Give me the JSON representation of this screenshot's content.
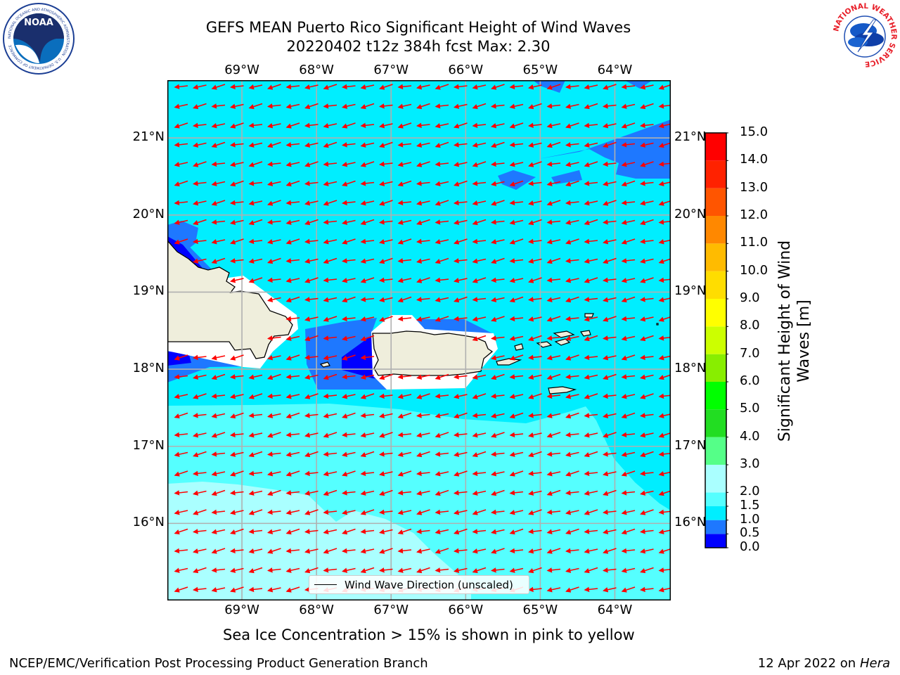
{
  "title": {
    "line1": "GEFS MEAN Puerto Rico Significant Height of Wind Waves",
    "line2": "20220402 t12z 384h fcst   Max: 2.30"
  },
  "logos": {
    "noaa": {
      "center_text": "NOAA",
      "ring_text": "NATIONAL OCEANIC AND ATMOSPHERIC ADMINISTRATION · U.S. DEPARTMENT OF COMMERCE"
    },
    "nws": {
      "ring_text": "NATIONAL WEATHER SERVICE"
    }
  },
  "map": {
    "lon_labels": [
      "69°W",
      "68°W",
      "67°W",
      "66°W",
      "65°W",
      "64°W"
    ],
    "lat_labels": [
      "21°N",
      "20°N",
      "19°N",
      "18°N",
      "17°N",
      "16°N"
    ],
    "lon_extent": [
      -70.0,
      -63.25
    ],
    "lat_extent": [
      15.0,
      21.75
    ],
    "land_color": "#efeedc",
    "arrow_color": "#ff0000",
    "grid_color": "#b0b0b0",
    "wind_wave_direction": "east-to-west"
  },
  "colorbar": {
    "label": "Significant Height of Wind Waves [m]",
    "tick_labels": [
      "0.0",
      "0.5",
      "1.0",
      "1.5",
      "2.0",
      "3.0",
      "4.0",
      "5.0",
      "6.0",
      "7.0",
      "8.0",
      "9.0",
      "10.0",
      "11.0",
      "12.0",
      "13.0",
      "14.0",
      "15.0"
    ],
    "levels": [
      0.0,
      0.5,
      1.0,
      1.5,
      2.0,
      3.0,
      4.0,
      5.0,
      6.0,
      7.0,
      8.0,
      9.0,
      10.0,
      11.0,
      12.0,
      13.0,
      14.0,
      15.0
    ],
    "colors": [
      "#0000ff",
      "#1e78ff",
      "#00eeff",
      "#55ffff",
      "#aaffff",
      "#55ff88",
      "#22dd22",
      "#00ff00",
      "#88ee00",
      "#ccff00",
      "#ffff00",
      "#ffdd00",
      "#ffbb00",
      "#ff8800",
      "#ff5500",
      "#ff2200",
      "#ff0000"
    ]
  },
  "legend": {
    "label": "Wind Wave Direction (unscaled)"
  },
  "footer": {
    "ice_note": "Sea Ice Concentration > 15% is shown in pink to yellow",
    "credit": "NCEP/EMC/Verification Post Processing Product Generation Branch",
    "date_prefix": "12 Apr 2022 on ",
    "machine": "Hera"
  }
}
